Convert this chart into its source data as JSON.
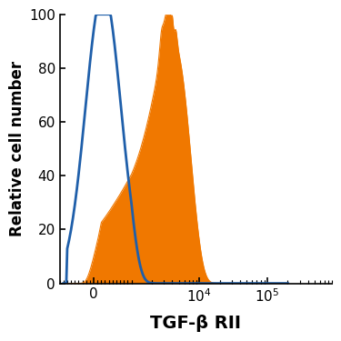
{
  "ylabel": "Relative cell number",
  "xlabel": "TGF-β RII",
  "ylim": [
    0,
    100
  ],
  "blue_color": "#1f5faa",
  "orange_color": "#f07800",
  "tick_label_fontsize": 11,
  "axis_label_fontsize": 12,
  "xlabel_fontsize": 14,
  "linthresh": 1000,
  "linscale": 0.5,
  "xlim_left": -800,
  "xlim_right": 200000
}
